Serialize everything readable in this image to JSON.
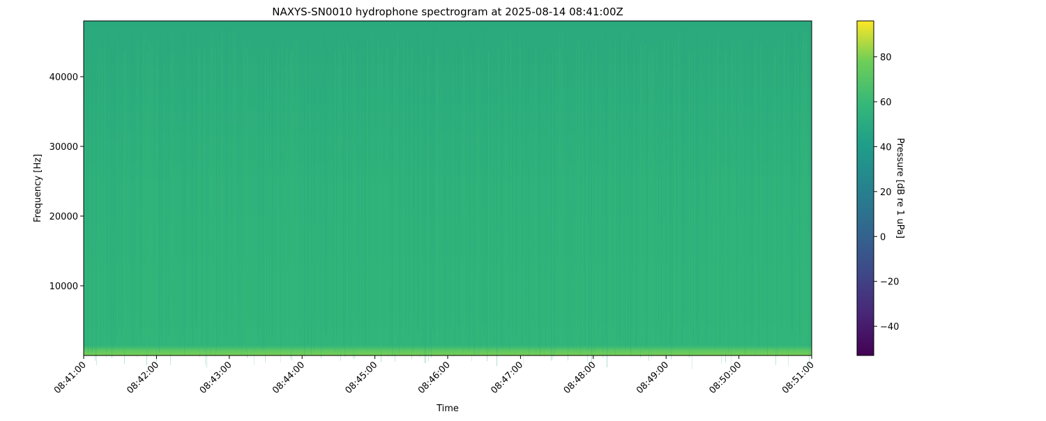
{
  "chart_data": {
    "type": "heatmap",
    "title": "NAXYS-SN0010 hydrophone spectrogram at 2025-08-14 08:41:00Z",
    "xlabel": "Time",
    "ylabel": "Frequency [Hz]",
    "colorbar_label": "Pressure [dB re 1 uPa]",
    "colormap": "viridis",
    "x_ticks": [
      "08:41:00",
      "08:42:00",
      "08:43:00",
      "08:44:00",
      "08:45:00",
      "08:46:00",
      "08:47:00",
      "08:48:00",
      "08:49:00",
      "08:50:00",
      "08:51:00"
    ],
    "xlim": [
      "08:41:00",
      "08:51:00"
    ],
    "y_ticks": [
      10000,
      20000,
      30000,
      40000
    ],
    "ylim": [
      0,
      48000
    ],
    "colorbar_ticks": [
      -40,
      -20,
      0,
      20,
      40,
      60,
      80
    ],
    "clim": [
      -53,
      96
    ],
    "levels": {
      "broadband_db": 48,
      "low_frequency_band_db": 62,
      "low_frequency_band_max_hz": 600
    },
    "grid": false
  }
}
